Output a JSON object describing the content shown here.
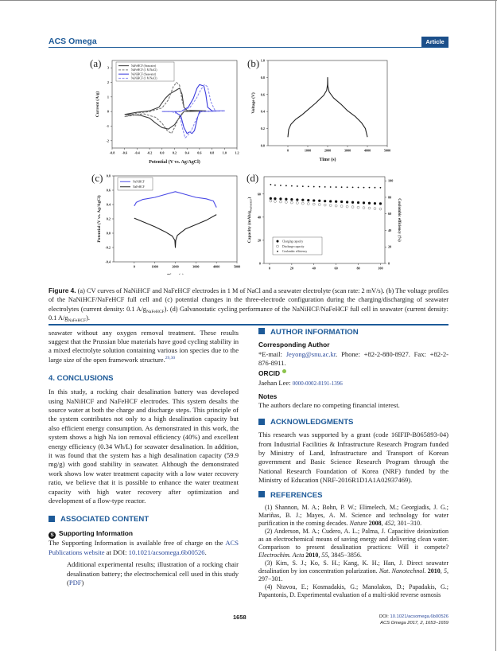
{
  "header": {
    "journal": "ACS Omega",
    "badge": "Article"
  },
  "figure": {
    "panel_labels": [
      "(a)",
      "(b)",
      "(c)",
      "(d)"
    ]
  },
  "chart_data": [
    {
      "id": "a",
      "type": "line",
      "xlabel": "Potential (V vs. Ag/AgCl)",
      "ylabel": "Current (A/g)",
      "xlim": [
        -0.8,
        1.2
      ],
      "ylim": [
        -2.5,
        3.5
      ],
      "xticks": [
        "-0.8",
        "-0.6",
        "-0.4",
        "-0.2",
        "0.0",
        "0.2",
        "0.4",
        "0.6",
        "0.8",
        "1.0",
        "1.2"
      ],
      "yticks": [
        "-2",
        "-1",
        "0",
        "1",
        "2",
        "3"
      ],
      "legend": "top-left",
      "series": [
        {
          "name": "NaFeHCF (Seawater)",
          "color": "#3a3a3a",
          "dash": false,
          "points": [
            [
              -0.6,
              -0.2
            ],
            [
              -0.4,
              -0.05
            ],
            [
              -0.2,
              0.05
            ],
            [
              -0.05,
              0.3
            ],
            [
              0.05,
              0.9
            ],
            [
              0.12,
              1.2
            ],
            [
              0.2,
              1.4
            ],
            [
              0.28,
              1.6
            ],
            [
              0.32,
              1.2
            ],
            [
              0.35,
              0.3
            ],
            [
              0.4,
              0.08
            ],
            [
              0.7,
              0.05
            ],
            [
              0.35,
              0
            ],
            [
              0.28,
              -0.4
            ],
            [
              0.2,
              -0.9
            ],
            [
              0.1,
              -1.2
            ],
            [
              0.0,
              -1.1
            ],
            [
              -0.1,
              -0.8
            ],
            [
              -0.2,
              -0.45
            ],
            [
              -0.35,
              -0.25
            ],
            [
              -0.6,
              -0.2
            ]
          ]
        },
        {
          "name": "NaFeHCF (1 M NaCl)",
          "color": "#777777",
          "dash": true,
          "points": [
            [
              -0.6,
              -0.35
            ],
            [
              -0.4,
              -0.1
            ],
            [
              -0.2,
              0.0
            ],
            [
              0.0,
              0.25
            ],
            [
              0.1,
              0.8
            ],
            [
              0.18,
              1.7
            ],
            [
              0.23,
              2.0
            ],
            [
              0.28,
              1.8
            ],
            [
              0.32,
              0.8
            ],
            [
              0.36,
              0.1
            ],
            [
              0.45,
              0.05
            ],
            [
              0.35,
              0
            ],
            [
              0.28,
              -0.3
            ],
            [
              0.2,
              -1.1
            ],
            [
              0.15,
              -1.5
            ],
            [
              0.08,
              -1.3
            ],
            [
              0.0,
              -0.8
            ],
            [
              -0.1,
              -0.4
            ],
            [
              -0.3,
              -0.15
            ],
            [
              -0.6,
              -0.35
            ]
          ]
        },
        {
          "name": "NaNiHCF (Seawater)",
          "color": "#3b3bdd",
          "dash": false,
          "points": [
            [
              0.0,
              0.0
            ],
            [
              0.3,
              0.0
            ],
            [
              0.42,
              0.3
            ],
            [
              0.5,
              0.9
            ],
            [
              0.56,
              1.6
            ],
            [
              0.6,
              1.85
            ],
            [
              0.67,
              1.75
            ],
            [
              0.7,
              1.2
            ],
            [
              0.73,
              0.3
            ],
            [
              0.8,
              0.05
            ],
            [
              1.0,
              0.05
            ],
            [
              0.6,
              0.0
            ],
            [
              0.57,
              -0.4
            ],
            [
              0.52,
              -1.3
            ],
            [
              0.48,
              -1.5
            ],
            [
              0.44,
              -1.4
            ],
            [
              0.4,
              -1.5
            ],
            [
              0.35,
              -1.1
            ],
            [
              0.3,
              -0.3
            ],
            [
              0.2,
              0.0
            ],
            [
              0.0,
              0.0
            ]
          ]
        },
        {
          "name": "NaNiHCF (1 M NaCl)",
          "color": "#9090ee",
          "dash": true,
          "points": [
            [
              0.0,
              0.0
            ],
            [
              0.3,
              0.0
            ],
            [
              0.45,
              0.3
            ],
            [
              0.55,
              0.9
            ],
            [
              0.62,
              1.5
            ],
            [
              0.68,
              1.85
            ],
            [
              0.73,
              1.7
            ],
            [
              0.78,
              0.7
            ],
            [
              0.85,
              0.05
            ],
            [
              1.0,
              0.05
            ],
            [
              0.62,
              0.0
            ],
            [
              0.55,
              -0.5
            ],
            [
              0.47,
              -1.3
            ],
            [
              0.4,
              -1.7
            ],
            [
              0.37,
              -1.8
            ],
            [
              0.33,
              -1.2
            ],
            [
              0.28,
              -0.2
            ],
            [
              0.15,
              0.0
            ],
            [
              0.0,
              0.0
            ]
          ]
        }
      ]
    },
    {
      "id": "b",
      "type": "line",
      "xlabel": "Time (s)",
      "ylabel": "Voltage (V)",
      "xlim": [
        -1000,
        5000
      ],
      "ylim": [
        0,
        1
      ],
      "xticks": [
        "0",
        "1000",
        "2000",
        "3000",
        "4000",
        "5000"
      ],
      "yticks": [
        "0.0",
        "0.2",
        "0.4",
        "0.6",
        "0.8",
        "1.0"
      ],
      "series": [
        {
          "name": "Full cell",
          "color": "#222222",
          "dash": false,
          "points": [
            [
              0,
              0.1
            ],
            [
              40,
              0.19
            ],
            [
              150,
              0.25
            ],
            [
              400,
              0.31
            ],
            [
              700,
              0.36
            ],
            [
              1000,
              0.42
            ],
            [
              1400,
              0.5
            ],
            [
              1800,
              0.59
            ],
            [
              1950,
              0.65
            ],
            [
              1995,
              0.72
            ],
            [
              2000,
              0.8
            ],
            [
              2010,
              0.7
            ],
            [
              2080,
              0.63
            ],
            [
              2300,
              0.56
            ],
            [
              2700,
              0.48
            ],
            [
              3000,
              0.41
            ],
            [
              3400,
              0.34
            ],
            [
              3700,
              0.27
            ],
            [
              3900,
              0.2
            ],
            [
              4000,
              0.1
            ]
          ]
        }
      ]
    },
    {
      "id": "c",
      "type": "line",
      "xlabel": "Time (s)",
      "ylabel": "Potential (V vs. Ag/AgCl)",
      "xlim": [
        -1000,
        5000
      ],
      "ylim": [
        -0.4,
        0.8
      ],
      "xticks": [
        "0",
        "1000",
        "2000",
        "3000",
        "4000",
        "5000"
      ],
      "yticks": [
        "-0.4",
        "-0.2",
        "0.0",
        "0.2",
        "0.4",
        "0.6",
        "0.8"
      ],
      "legend": "top-left",
      "series": [
        {
          "name": "NaNiHCF",
          "color": "#4a4ae6",
          "dash": false,
          "points": [
            [
              0,
              0.38
            ],
            [
              100,
              0.43
            ],
            [
              400,
              0.47
            ],
            [
              1000,
              0.5
            ],
            [
              1500,
              0.54
            ],
            [
              2000,
              0.58
            ],
            [
              2500,
              0.54
            ],
            [
              3000,
              0.5
            ],
            [
              3500,
              0.48
            ],
            [
              3850,
              0.45
            ],
            [
              4000,
              0.36
            ]
          ]
        },
        {
          "name": "NaFeHCF",
          "color": "#222222",
          "dash": false,
          "points": [
            [
              0,
              0.21
            ],
            [
              500,
              0.15
            ],
            [
              1000,
              0.09
            ],
            [
              1500,
              0.02
            ],
            [
              1850,
              -0.04
            ],
            [
              1975,
              -0.1
            ],
            [
              2000,
              -0.2
            ],
            [
              2020,
              -0.1
            ],
            [
              2100,
              -0.03
            ],
            [
              2500,
              0.06
            ],
            [
              3000,
              0.12
            ],
            [
              3500,
              0.18
            ],
            [
              4000,
              0.26
            ]
          ]
        }
      ]
    },
    {
      "id": "d",
      "type": "scatter",
      "xlabel": "Cycle number",
      "ylabel": "Capacity (mAh/g",
      "ylabel_sub": "NaFeHCF",
      "ylabel_end": ")",
      "y2label": "Coulombic efficiency (%)",
      "xlim": [
        -5,
        104
      ],
      "ylim": [
        0,
        75
      ],
      "y2lim": [
        0,
        105
      ],
      "xticks": [
        "0",
        "20",
        "40",
        "60",
        "80",
        "100"
      ],
      "yticks": [
        "0",
        "20",
        "40",
        "60"
      ],
      "y2ticks": [
        "0",
        "20",
        "40",
        "60",
        "80",
        "100"
      ],
      "legend": "bottom-left",
      "x": [
        1,
        5,
        10,
        15,
        20,
        25,
        30,
        35,
        40,
        45,
        50,
        55,
        60,
        65,
        70,
        75,
        80,
        85,
        90,
        95,
        100
      ],
      "series": [
        {
          "name": "Charging capacity",
          "marker": "filled",
          "axis": "left",
          "values": [
            56.2,
            56.0,
            55.8,
            55.6,
            55.3,
            55.1,
            54.9,
            54.6,
            54.4,
            54.2,
            53.9,
            53.7,
            53.5,
            53.3,
            53.0,
            52.8,
            52.6,
            52.4,
            52.1,
            51.9,
            51.7
          ]
        },
        {
          "name": "Discharge capacity",
          "marker": "open",
          "axis": "left",
          "values": [
            54.0,
            53.7,
            53.3,
            53.0,
            52.6,
            52.3,
            51.9,
            51.6,
            51.2,
            50.9,
            50.5,
            50.2,
            49.8,
            49.5,
            49.1,
            48.8,
            48.4,
            48.1,
            47.8,
            47.4,
            47.1
          ]
        },
        {
          "name": "Coulombic efficiency",
          "marker": "dot",
          "axis": "right",
          "values": [
            95.5,
            94.8,
            94.4,
            94.1,
            93.8,
            93.5,
            93.3,
            93.1,
            92.9,
            92.8,
            92.6,
            92.5,
            92.4,
            92.3,
            92.2,
            92.1,
            92.0,
            91.9,
            91.9,
            91.8,
            91.7
          ]
        }
      ]
    }
  ],
  "caption": {
    "label": "Figure 4.",
    "text1": " (a) CV curves of NaNiHCF and NaFeHCF electrodes in 1 M of NaCl and a seawater electrolyte (scan rate: 2 mV/s). (b) The voltage profiles of the NaNiHCF/NaFeHCF full cell and (c) potential changes in the three-electrode configuration during the charging/discharging of seawater electrolytes (current density: 0.1 A/g",
    "sub1": "NaFeHCF",
    "text2": "). (d) Galvanostatic cycling performance of the NaNiHCF/NaFeHCF full cell in seawater (current density: 0.1 A/g",
    "sub2": "NaFeHCF",
    "text3": ")."
  },
  "left": {
    "p1": "seawater without any oxygen removal treatment. These results suggest that the Prussian blue materials have good cycling stability in a mixed electrolyte solution containing various ion species due to the large size of the open framework structure.",
    "p1_cite": "29,30",
    "conclusions_heading": "4. CONCLUSIONS",
    "conclusions": "In this study, a rocking chair desalination battery was developed using NaNiHCF and NaFeHCF electrodes. This system desalts the source water at both the charge and discharge steps. This principle of the system contributes not only to a high desalination capacity but also efficient energy consumption. As demonstrated in this work, the system shows a high Na ion removal efficiency (40%) and excellent energy efficiency (0.34 Wh/L) for seawater desalination. In addition, it was found that the system has a high desalination capacity (59.9 mg/g) with good stability in seawater. Although the demonstrated work shows low water treatment capacity with a low water recovery ratio, we believe that it is possible to enhance the water treatment capacity with high water recovery after optimization and development of a flow-type reactor.",
    "associated_heading": "ASSOCIATED CONTENT",
    "si_badge": "S",
    "si_heading": "Supporting Information",
    "si_text1": "The Supporting Information is available free of charge on the ",
    "si_link": "ACS Publications website",
    "si_text2": " at DOI: ",
    "si_doi": "10.1021/acsomega.6b00526",
    "si_text3": ".",
    "si_desc": "Additional experimental results; illustration of a rocking chair desalination battery; the electrochemical cell used in this study (",
    "si_pdf": "PDF",
    "si_desc_end": ")"
  },
  "right": {
    "author_heading": "AUTHOR INFORMATION",
    "corr_heading": "Corresponding Author",
    "email_prefix": "*E-mail: ",
    "email": "Jeyong@snu.ac.kr",
    "contact": ". Phone: +82-2-880-8927. Fax: +82-2-876-8911.",
    "orcid_heading": "ORCID",
    "orcid_name": "Jaehan Lee: ",
    "orcid_id": "0000-0002-8191-1396",
    "notes_heading": "Notes",
    "notes": "The authors declare no competing financial interest.",
    "ack_heading": "ACKNOWLEDGMENTS",
    "ack": "This research was supported by a grant (code 16IFIP-B065893-04) from Industrial Facilities & Infrastructure Research Program funded by Ministry of Land, Infrastructure and Transport of Korean government and Basic Science Research Program through the National Research Foundation of Korea (NRF) funded by the Ministry of Education (NRF-2016R1D1A1A02937469).",
    "refs_heading": "REFERENCES",
    "refs": [
      {
        "text": "(1) Shannon, M. A.; Bohn, P. W.; Elimelech, M.; Georgiadis, J. G.; Mariñas, B. J.; Mayes, A. M. Science and technology for water purification in the coming decades. ",
        "journal": "Nature",
        "year": " 2008",
        "vol": ", 452",
        "pages": ", 301−310."
      },
      {
        "text": "(2) Anderson, M. A.; Cudero, A. L.; Palma, J. Capacitive deionization as an electrochemical means of saving energy and delivering clean water. Comparison to present desalination practices: Will it compete? ",
        "journal": "Electrochim. Acta",
        "year": " 2010",
        "vol": ", 55",
        "pages": ", 3845−3856."
      },
      {
        "text": "(3) Kim, S. J.; Ko, S. H.; Kang, K. H.; Han, J. Direct seawater desalination by ion concentration polarization. ",
        "journal": "Nat. Nanotechnol.",
        "year": " 2010",
        "vol": ", 5",
        "pages": ", 297−301."
      },
      {
        "text": "(4) Ntavou, E.; Kosmadakis, G.; Manolakos, D.; Papadakis, G.; Papantonis, D. Experimental evaluation of a multi-skid reverse osmosis",
        "journal": "",
        "year": "",
        "vol": "",
        "pages": ""
      }
    ]
  },
  "footer": {
    "page": "1658",
    "doi_label": "DOI: ",
    "doi": "10.1021/acsomega.6b00526",
    "citation": "ACS Omega 2017, 2, 1653−1659"
  }
}
